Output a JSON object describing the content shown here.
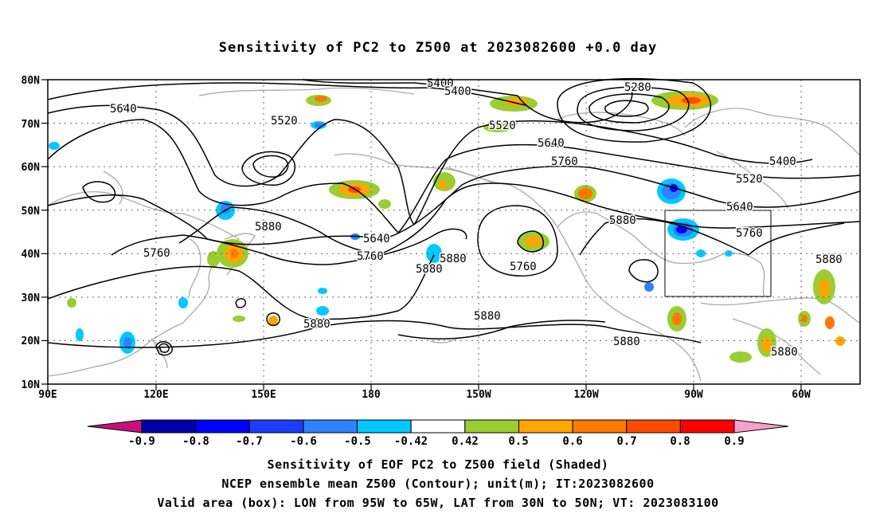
{
  "title": "Sensitivity of PC2 to Z500 at 2023082600 +0.0 day",
  "lon_labels": [
    "90E",
    "120E",
    "150E",
    "180",
    "150W",
    "120W",
    "90W",
    "60W"
  ],
  "lat_labels": [
    "80N",
    "70N",
    "60N",
    "50N",
    "40N",
    "30N",
    "20N",
    "10N"
  ],
  "contour_labels": [
    "5400",
    "5400",
    "5280",
    "5640",
    "5520",
    "5520",
    "5640",
    "5760",
    "5400",
    "5520",
    "5880",
    "5640",
    "5760",
    "5760",
    "5880",
    "5880",
    "5760",
    "5880",
    "5640",
    "5760",
    "5880",
    "5880",
    "5880",
    "5880",
    "5880"
  ],
  "colorbar": {
    "labels": [
      "-0.9",
      "-0.8",
      "-0.7",
      "-0.6",
      "-0.5",
      "-0.42",
      "0.42",
      "0.5",
      "0.6",
      "0.7",
      "0.8",
      "0.9"
    ],
    "colors": [
      "#0000aa",
      "#0000ff",
      "#1e3cff",
      "#2d82ff",
      "#00c8ff",
      "#ffffff",
      "#9acd32",
      "#ffa500",
      "#ff7800",
      "#ff4b00",
      "#ff0000"
    ],
    "low_end_color": "#c8107d",
    "high_end_color": "#f5a0c8"
  },
  "captions": [
    "Sensitivity of EOF PC2 to Z500 field (Shaded)",
    "NCEP ensemble mean Z500 (Contour); unit(m); IT:2023082600",
    "Valid area (box): LON from 95W to 65W, LAT from 30N to 50N; VT: 2023083100"
  ],
  "valid_box": {
    "lon": [
      -95,
      -65
    ],
    "lat": [
      30,
      50
    ]
  }
}
